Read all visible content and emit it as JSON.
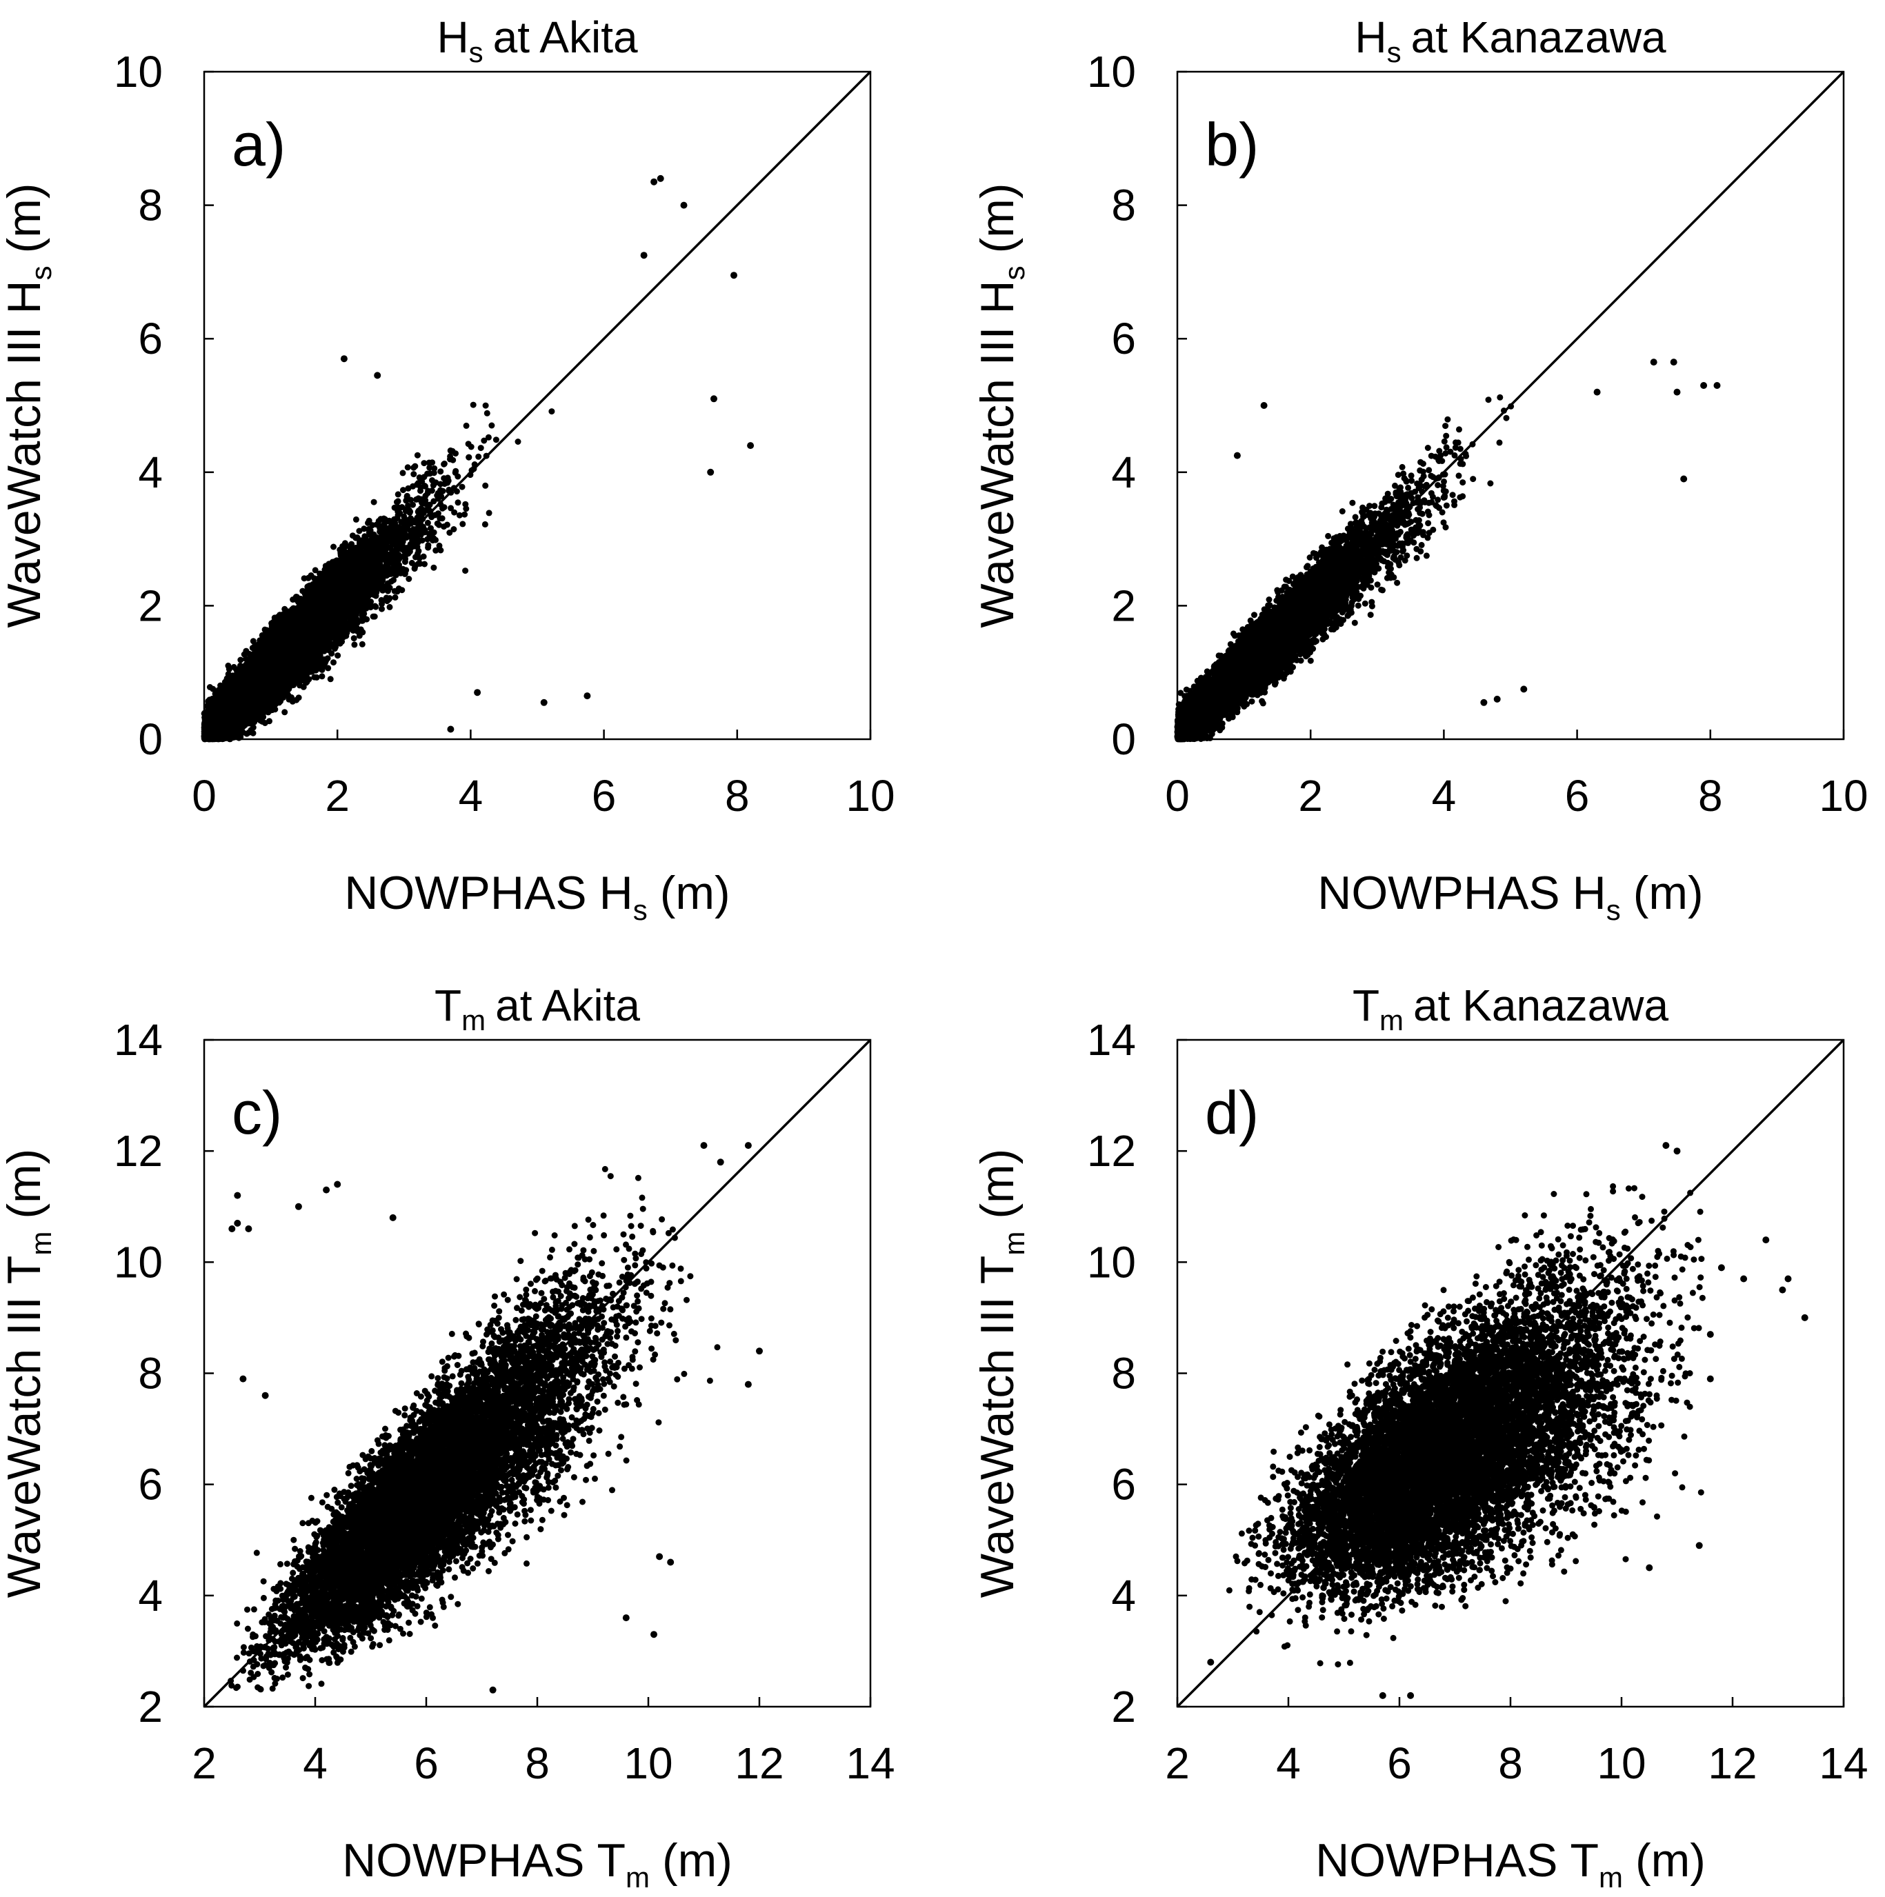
{
  "figure": {
    "x_axis_base": "NOWPHAS",
    "y_axis_base": "WaveWatch III",
    "unit": "(m)",
    "at": "at"
  },
  "chart_data": [
    {
      "type": "scatter",
      "panel_label": "a)",
      "title": {
        "symbol": "H",
        "subscript": "s",
        "text": "at Akita"
      },
      "xlabel": {
        "prefix": "NOWPHAS",
        "symbol": "H",
        "subscript": "s",
        "unit": "(m)"
      },
      "ylabel": {
        "prefix": "WaveWatch III",
        "symbol": "H",
        "subscript": "s",
        "unit": "(m)"
      },
      "xlim": [
        0,
        10
      ],
      "ylim": [
        0,
        10
      ],
      "xticks": [
        "0",
        "2",
        "4",
        "6",
        "8",
        "10"
      ],
      "yticks": [
        "0",
        "2",
        "4",
        "6",
        "8",
        "10"
      ],
      "reference_line": "1:1",
      "cloud": {
        "count": 9000,
        "x_mode": 1.2,
        "x_spread": 0.75,
        "x_max": 8.2,
        "slope": 1.0,
        "offset": 0.05,
        "noise": 0.55,
        "y_cap": 8.4
      },
      "outliers": [
        [
          6.75,
          8.35
        ],
        [
          6.85,
          8.4
        ],
        [
          7.2,
          8.0
        ],
        [
          7.95,
          6.95
        ],
        [
          8.2,
          4.4
        ],
        [
          7.6,
          4.0
        ],
        [
          6.6,
          7.25
        ],
        [
          7.65,
          5.1
        ],
        [
          5.1,
          0.55
        ],
        [
          5.75,
          0.65
        ],
        [
          4.1,
          0.7
        ],
        [
          3.7,
          0.15
        ],
        [
          2.6,
          5.45
        ],
        [
          2.1,
          5.7
        ]
      ]
    },
    {
      "type": "scatter",
      "panel_label": "b)",
      "title": {
        "symbol": "H",
        "subscript": "s",
        "text": "at Kanazawa"
      },
      "xlabel": {
        "prefix": "NOWPHAS",
        "symbol": "H",
        "subscript": "s",
        "unit": "(m)"
      },
      "ylabel": {
        "prefix": "WaveWatch III",
        "symbol": "H",
        "subscript": "s",
        "unit": "(m)"
      },
      "xlim": [
        0,
        10
      ],
      "ylim": [
        0,
        10
      ],
      "xticks": [
        "0",
        "2",
        "4",
        "6",
        "8",
        "10"
      ],
      "yticks": [
        "0",
        "2",
        "4",
        "6",
        "8",
        "10"
      ],
      "reference_line": "1:1",
      "cloud": {
        "count": 9000,
        "x_mode": 1.2,
        "x_spread": 0.8,
        "x_max": 8.1,
        "slope": 0.95,
        "offset": 0.1,
        "noise": 0.5,
        "y_cap": 5.8
      },
      "outliers": [
        [
          7.15,
          5.65
        ],
        [
          7.45,
          5.65
        ],
        [
          7.9,
          5.3
        ],
        [
          8.1,
          5.3
        ],
        [
          7.5,
          5.2
        ],
        [
          7.6,
          3.9
        ],
        [
          6.3,
          5.2
        ],
        [
          4.8,
          0.6
        ],
        [
          5.2,
          0.75
        ],
        [
          4.6,
          0.55
        ],
        [
          1.3,
          5.0
        ],
        [
          0.9,
          4.25
        ]
      ]
    },
    {
      "type": "scatter",
      "panel_label": "c)",
      "title": {
        "symbol": "T",
        "subscript": "m",
        "text": "at Akita"
      },
      "xlabel": {
        "prefix": "NOWPHAS",
        "symbol": "T",
        "subscript": "m",
        "unit": "(m)"
      },
      "ylabel": {
        "prefix": "WaveWatch III",
        "symbol": "T",
        "subscript": "m",
        "unit": "(m)"
      },
      "xlim": [
        2,
        14
      ],
      "ylim": [
        2,
        14
      ],
      "xticks": [
        "2",
        "4",
        "6",
        "8",
        "10",
        "12",
        "14"
      ],
      "yticks": [
        "2",
        "4",
        "6",
        "8",
        "10",
        "12",
        "14"
      ],
      "reference_line": "1:1",
      "cloud": {
        "count": 9000,
        "x_mode": 5.5,
        "x_spread": 1.7,
        "x_min": 2.4,
        "x_max": 12.0,
        "slope": 0.9,
        "offset": 0.4,
        "noise": 0.9,
        "y_min": 2.3,
        "y_cap": 12.1
      },
      "outliers": [
        [
          2.6,
          11.2
        ],
        [
          2.6,
          10.7
        ],
        [
          2.8,
          10.6
        ],
        [
          2.5,
          10.6
        ],
        [
          4.4,
          11.4
        ],
        [
          4.2,
          11.3
        ],
        [
          3.7,
          11.0
        ],
        [
          5.4,
          10.8
        ],
        [
          2.7,
          7.9
        ],
        [
          3.1,
          7.6
        ],
        [
          9.6,
          3.6
        ],
        [
          10.1,
          3.3
        ],
        [
          10.2,
          4.7
        ],
        [
          10.4,
          4.6
        ],
        [
          11.0,
          12.1
        ],
        [
          11.3,
          11.8
        ],
        [
          11.8,
          12.1
        ],
        [
          12.0,
          8.4
        ],
        [
          11.8,
          7.8
        ],
        [
          7.2,
          2.3
        ]
      ]
    },
    {
      "type": "scatter",
      "panel_label": "d)",
      "title": {
        "symbol": "T",
        "subscript": "m",
        "text": "at Kanazawa"
      },
      "xlabel": {
        "prefix": "NOWPHAS",
        "symbol": "T",
        "subscript": "m",
        "unit": "(m)"
      },
      "ylabel": {
        "prefix": "WaveWatch III",
        "symbol": "T",
        "subscript": "m",
        "unit": "(m)"
      },
      "xlim": [
        2,
        14
      ],
      "ylim": [
        2,
        14
      ],
      "xticks": [
        "2",
        "4",
        "6",
        "8",
        "10",
        "12",
        "14"
      ],
      "yticks": [
        "2",
        "4",
        "6",
        "8",
        "10",
        "12",
        "14"
      ],
      "reference_line": "1:1",
      "cloud": {
        "count": 9000,
        "x_mode": 6.3,
        "x_spread": 1.8,
        "x_min": 2.9,
        "x_max": 11.5,
        "slope": 0.55,
        "offset": 2.8,
        "noise": 1.1,
        "y_min": 2.1,
        "y_cap": 12.1
      },
      "outliers": [
        [
          12.2,
          9.7
        ],
        [
          12.6,
          10.4
        ],
        [
          12.9,
          9.5
        ],
        [
          13.0,
          9.7
        ],
        [
          13.3,
          9.0
        ],
        [
          11.8,
          9.9
        ],
        [
          11.6,
          8.7
        ],
        [
          11.6,
          7.9
        ],
        [
          11.4,
          4.9
        ],
        [
          10.5,
          4.5
        ],
        [
          10.8,
          12.1
        ],
        [
          11.0,
          12.0
        ],
        [
          5.7,
          2.2
        ],
        [
          6.2,
          2.2
        ],
        [
          2.6,
          2.8
        ]
      ]
    }
  ]
}
